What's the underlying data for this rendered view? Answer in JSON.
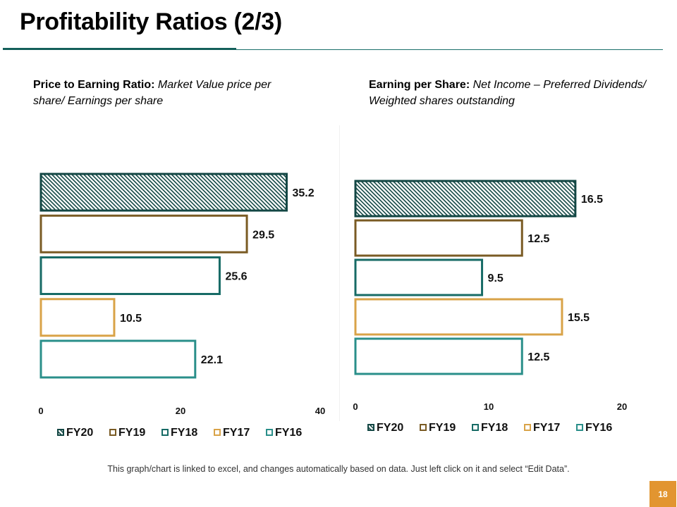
{
  "slide": {
    "title": "Profitability Ratios (2/3)",
    "footnote": "This graph/chart is linked to excel, and changes automatically based on data. Just left click on it and select “Edit Data”.",
    "page_number": "18"
  },
  "colors": {
    "FY20": "#134744",
    "FY19": "#7a5b24",
    "FY18": "#176b66",
    "FY17": "#d9a348",
    "FY16": "#2a8f8a",
    "title_rule": "#145f5a",
    "page_badge": "#e29530"
  },
  "chart_data": [
    {
      "type": "bar",
      "orientation": "horizontal",
      "heading_bold": "Price to Earning Ratio:",
      "heading_italic": "Market Value price per share/ Earnings per share",
      "categories": [
        "FY20",
        "FY19",
        "FY18",
        "FY17",
        "FY16"
      ],
      "values": [
        35.2,
        29.5,
        25.6,
        10.5,
        22.1
      ],
      "value_labels": [
        "35.2",
        "29.5",
        "25.6",
        "10.5",
        "22.1"
      ],
      "xlim": [
        0,
        40
      ],
      "xticks": [
        "0",
        "20",
        "40"
      ],
      "legend": [
        "FY20",
        "FY19",
        "FY18",
        "FY17",
        "FY16"
      ],
      "legend_position": "bottom",
      "grid": false
    },
    {
      "type": "bar",
      "orientation": "horizontal",
      "heading_bold": "Earning per Share:",
      "heading_italic": "Net Income – Preferred Dividends/ Weighted shares outstanding",
      "categories": [
        "FY20",
        "FY19",
        "FY18",
        "FY17",
        "FY16"
      ],
      "values": [
        16.5,
        12.5,
        9.5,
        15.5,
        12.5
      ],
      "value_labels": [
        "16.5",
        "12.5",
        "9.5",
        "15.5",
        "12.5"
      ],
      "xlim": [
        0,
        20
      ],
      "xticks": [
        "0",
        "10",
        "20"
      ],
      "legend": [
        "FY20",
        "FY19",
        "FY18",
        "FY17",
        "FY16"
      ],
      "legend_position": "bottom",
      "grid": false
    }
  ]
}
